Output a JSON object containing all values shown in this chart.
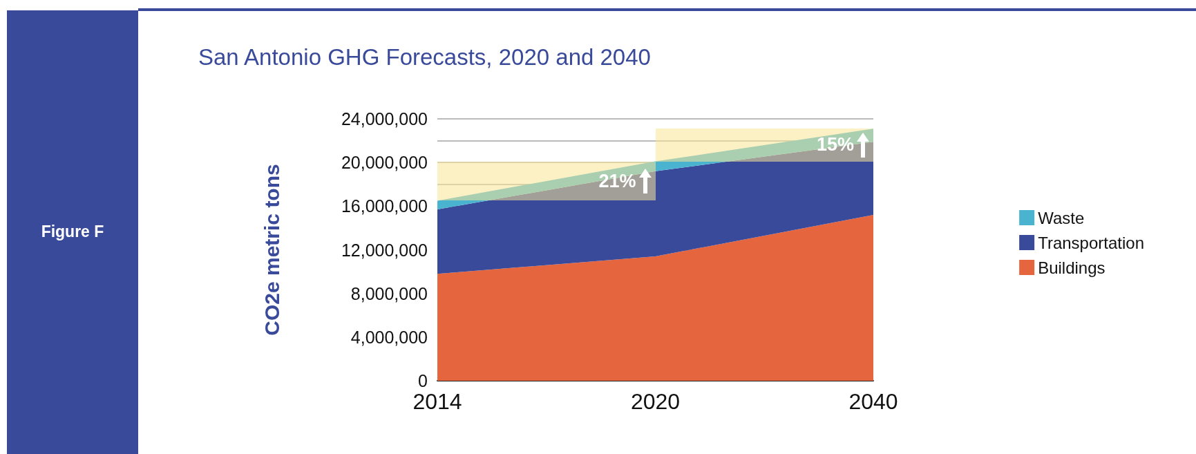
{
  "chart_data": {
    "type": "area",
    "stacked": true,
    "title": "San Antonio GHG Forecasts, 2020 and 2040",
    "ylabel": "CO2e metric tons",
    "categories": [
      "2014",
      "2020",
      "2040"
    ],
    "series": [
      {
        "name": "Buildings",
        "color": "#e5653e",
        "values": [
          9800000,
          11400000,
          15200000
        ]
      },
      {
        "name": "Transportation",
        "color": "#3a4a9b",
        "values": [
          5900000,
          7800000,
          6700000
        ]
      },
      {
        "name": "Waste",
        "color": "#4ab3d0",
        "values": [
          800000,
          900000,
          1200000
        ]
      }
    ],
    "ylim": [
      0,
      24000000
    ],
    "yticks": [
      0,
      {
        "value": 4000000,
        "label": "4,000,000"
      },
      {
        "value": 8000000,
        "label": "8,000,000"
      },
      {
        "value": 12000000,
        "label": "12,000,000"
      },
      {
        "value": 16000000,
        "label": "16,000,000"
      },
      {
        "value": 18000000,
        "label": null
      },
      {
        "value": 20000000,
        "label": "20,000,000"
      },
      {
        "value": 22000000,
        "label": null
      },
      {
        "value": 24000000,
        "label": "24,000,000"
      }
    ],
    "grid": "y",
    "legend": "right",
    "annotations": [
      "Figure F",
      "21%",
      "15%"
    ]
  }
}
